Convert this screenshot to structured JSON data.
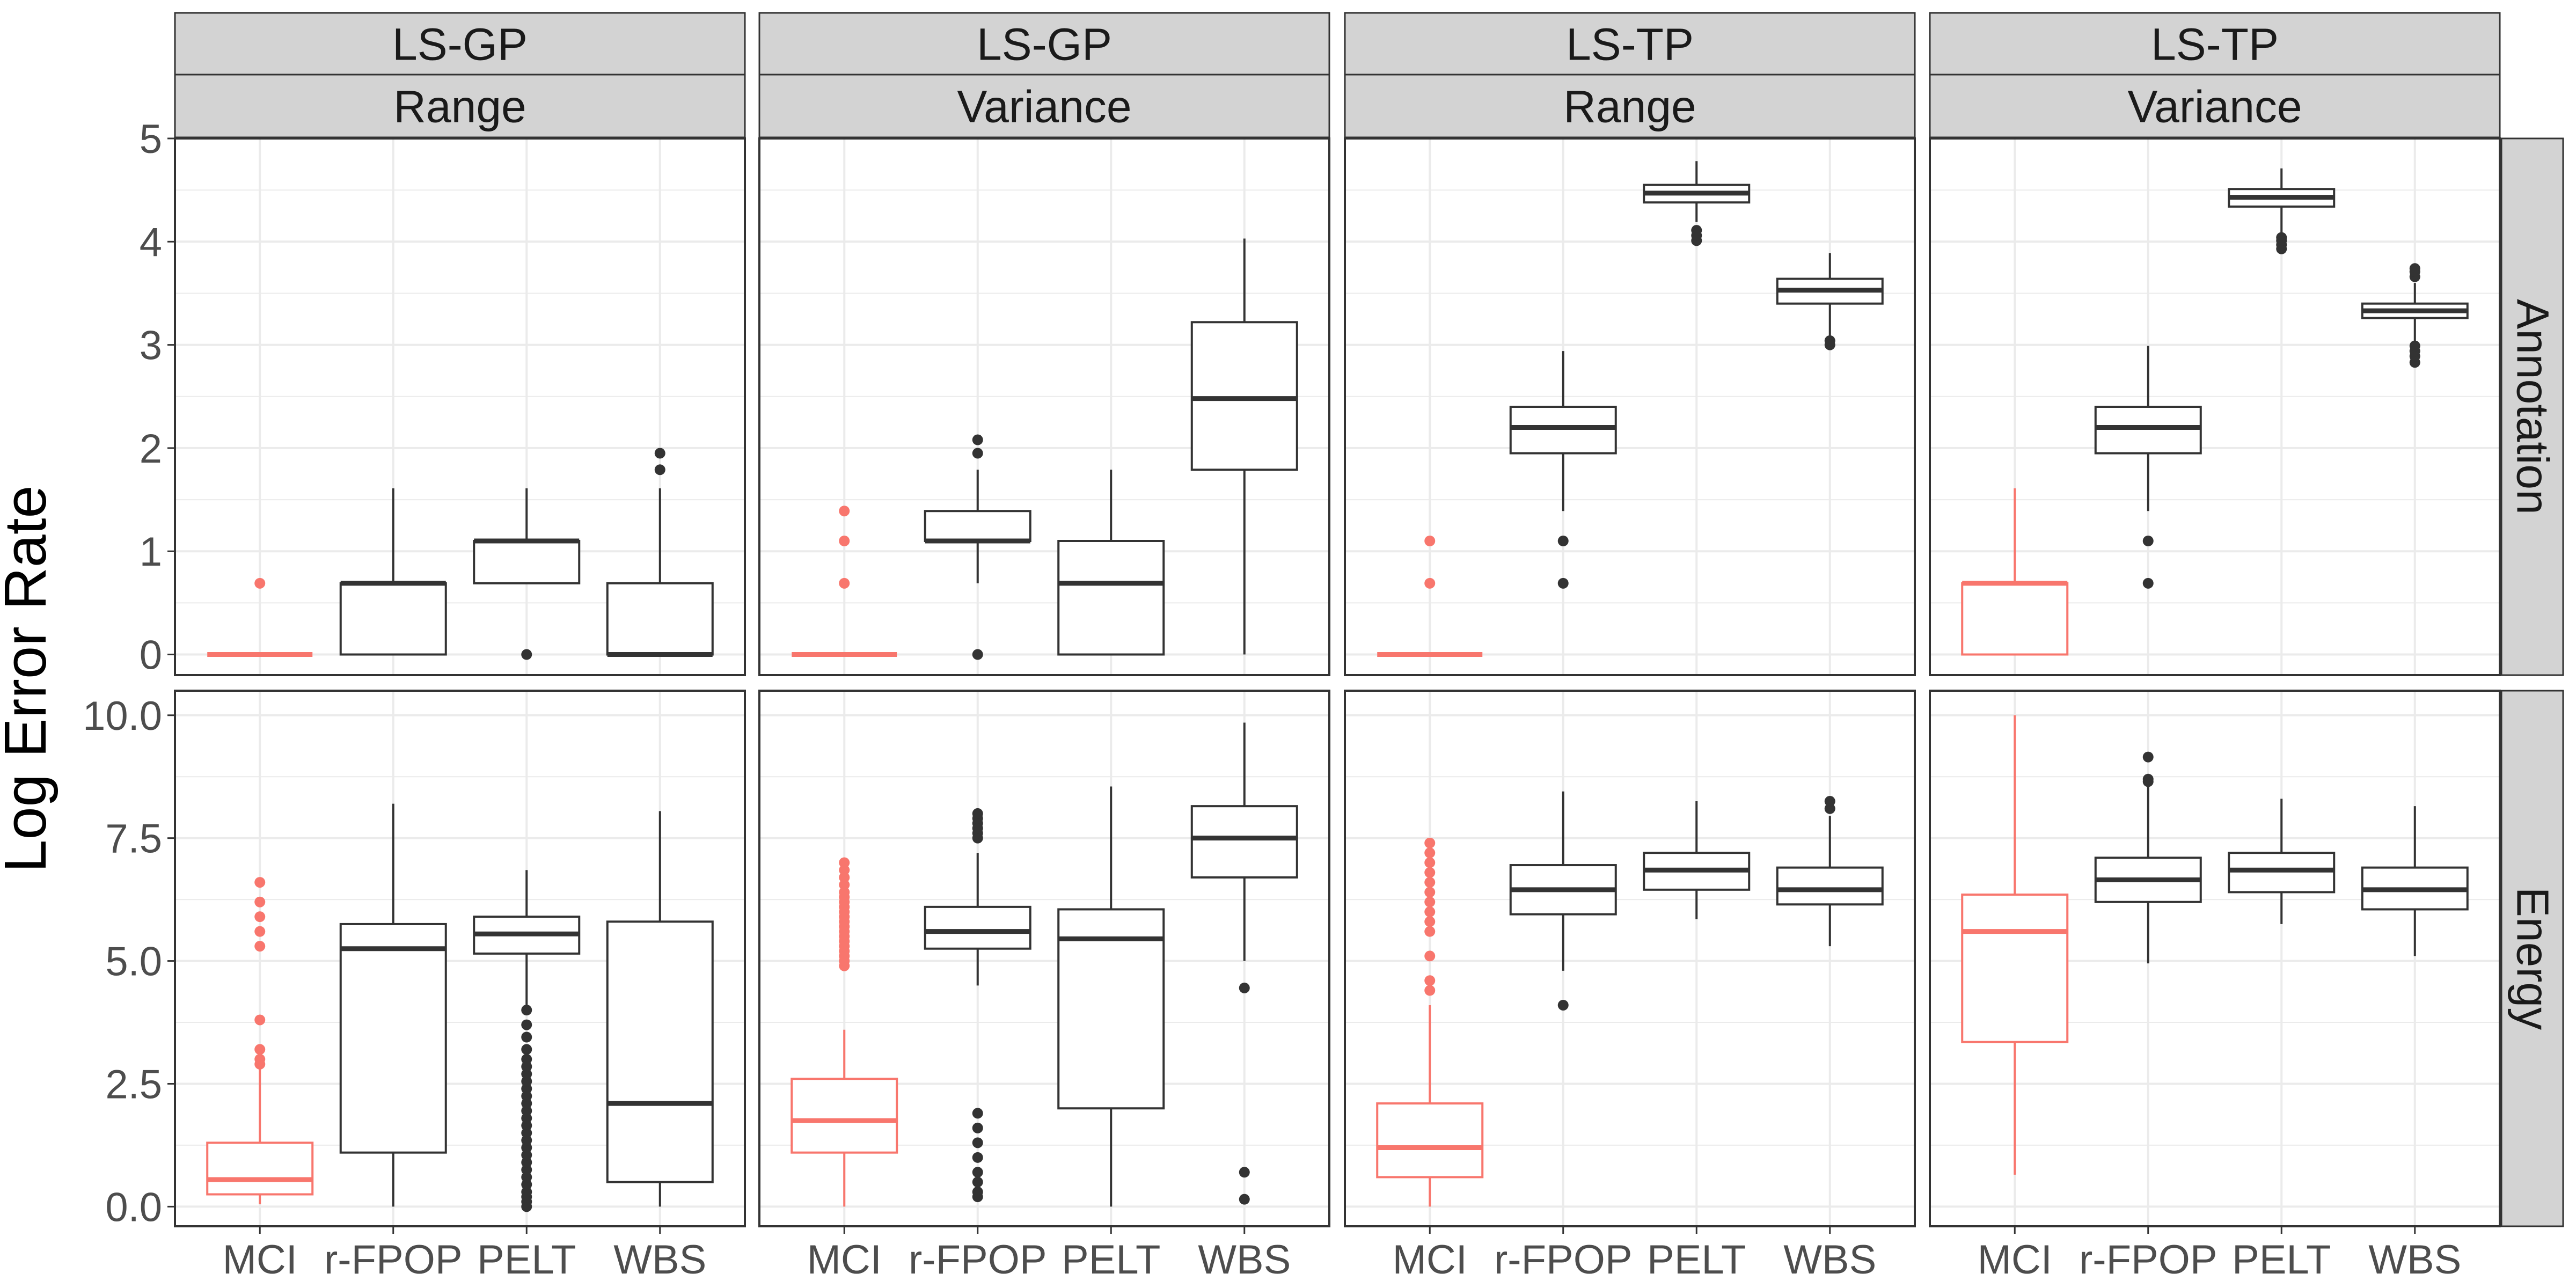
{
  "chart_data": {
    "type": "box",
    "ylabel": "Log Error Rate",
    "categories": [
      "MCI",
      "r-FPOP",
      "PELT",
      "WBS"
    ],
    "highlight_category": "MCI",
    "colors": {
      "highlight": "#F8766D",
      "default": "#333333",
      "strip_bg": "#D3D3D3",
      "grid": "#EBEBEB",
      "panel_border": "#333333",
      "axis_text": "#4D4D4D"
    },
    "columns": [
      {
        "method": "LS-GP",
        "measure": "Range"
      },
      {
        "method": "LS-GP",
        "measure": "Variance"
      },
      {
        "method": "LS-TP",
        "measure": "Range"
      },
      {
        "method": "LS-TP",
        "measure": "Variance"
      }
    ],
    "rows": [
      {
        "label": "Annotation",
        "ylim": [
          -0.2,
          5
        ],
        "ticks": [
          0,
          1,
          2,
          3,
          4,
          5
        ],
        "tick_labels": [
          "0",
          "1",
          "2",
          "3",
          "4",
          "5"
        ]
      },
      {
        "label": "Energy",
        "ylim": [
          -0.4,
          10.5
        ],
        "ticks": [
          0,
          2.5,
          5,
          7.5,
          10
        ],
        "tick_labels": [
          "0.0",
          "2.5",
          "5.0",
          "7.5",
          "10.0"
        ]
      }
    ],
    "panels": [
      [
        [
          {
            "min": 0,
            "q1": 0,
            "median": 0,
            "q3": 0,
            "max": 0,
            "outliers": [
              0.69
            ]
          },
          {
            "min": 0,
            "q1": 0,
            "median": 0.69,
            "q3": 0.69,
            "max": 1.61,
            "outliers": []
          },
          {
            "min": 0.69,
            "q1": 0.69,
            "median": 1.1,
            "q3": 1.1,
            "max": 1.61,
            "outliers": [
              0
            ]
          },
          {
            "min": 0,
            "q1": 0,
            "median": 0,
            "q3": 0.69,
            "max": 1.61,
            "outliers": [
              1.79,
              1.95
            ]
          }
        ],
        [
          {
            "min": 0,
            "q1": 0,
            "median": 0,
            "q3": 0,
            "max": 0,
            "outliers": [
              0.69,
              1.1,
              1.39
            ]
          },
          {
            "min": 0.69,
            "q1": 1.1,
            "median": 1.1,
            "q3": 1.39,
            "max": 1.79,
            "outliers": [
              0,
              1.95,
              2.08
            ]
          },
          {
            "min": 0,
            "q1": 0,
            "median": 0.69,
            "q3": 1.1,
            "max": 1.79,
            "outliers": []
          },
          {
            "min": 0,
            "q1": 1.79,
            "median": 2.48,
            "q3": 3.22,
            "max": 4.03,
            "outliers": []
          }
        ],
        [
          {
            "min": 0,
            "q1": 0,
            "median": 0,
            "q3": 0,
            "max": 0,
            "outliers": [
              0.69,
              1.1
            ]
          },
          {
            "min": 1.39,
            "q1": 1.95,
            "median": 2.2,
            "q3": 2.4,
            "max": 2.94,
            "outliers": [
              0.69,
              1.1
            ]
          },
          {
            "min": 4.19,
            "q1": 4.38,
            "median": 4.47,
            "q3": 4.55,
            "max": 4.78,
            "outliers": [
              4.01,
              4.06,
              4.11
            ]
          },
          {
            "min": 3.09,
            "q1": 3.4,
            "median": 3.53,
            "q3": 3.64,
            "max": 3.89,
            "outliers": [
              3.0,
              3.04
            ]
          }
        ],
        [
          {
            "min": 0,
            "q1": 0,
            "median": 0.69,
            "q3": 0.69,
            "max": 1.61,
            "outliers": []
          },
          {
            "min": 1.39,
            "q1": 1.95,
            "median": 2.2,
            "q3": 2.4,
            "max": 2.99,
            "outliers": [
              0.69,
              1.1
            ]
          },
          {
            "min": 4.06,
            "q1": 4.34,
            "median": 4.43,
            "q3": 4.51,
            "max": 4.71,
            "outliers": [
              3.93,
              3.97,
              4.01,
              4.04
            ]
          },
          {
            "min": 3.0,
            "q1": 3.26,
            "median": 3.33,
            "q3": 3.4,
            "max": 3.6,
            "outliers": [
              2.83,
              2.89,
              2.94,
              2.99,
              3.66,
              3.71,
              3.74
            ]
          }
        ]
      ],
      [
        [
          {
            "min": 0.05,
            "q1": 0.25,
            "median": 0.55,
            "q3": 1.3,
            "max": 2.8,
            "outliers": [
              2.9,
              3.0,
              3.2,
              3.8,
              5.3,
              5.6,
              5.9,
              6.2,
              6.6
            ]
          },
          {
            "min": 0,
            "q1": 1.1,
            "median": 5.25,
            "q3": 5.75,
            "max": 8.2,
            "outliers": []
          },
          {
            "min": 4.1,
            "q1": 5.15,
            "median": 5.55,
            "q3": 5.9,
            "max": 6.85,
            "outliers": [
              0,
              0.1,
              0.2,
              0.3,
              0.45,
              0.6,
              0.75,
              0.9,
              1.05,
              1.2,
              1.35,
              1.5,
              1.65,
              1.8,
              1.95,
              2.1,
              2.25,
              2.4,
              2.55,
              2.7,
              2.85,
              3.0,
              3.2,
              3.45,
              3.7,
              4.0
            ]
          },
          {
            "min": 0,
            "q1": 0.5,
            "median": 2.1,
            "q3": 5.8,
            "max": 8.05,
            "outliers": []
          }
        ],
        [
          {
            "min": 0,
            "q1": 1.1,
            "median": 1.75,
            "q3": 2.6,
            "max": 3.6,
            "outliers": [
              4.9,
              5.0,
              5.1,
              5.2,
              5.3,
              5.4,
              5.5,
              5.6,
              5.7,
              5.8,
              5.9,
              6.0,
              6.1,
              6.2,
              6.3,
              6.4,
              6.55,
              6.7,
              6.85,
              7.0
            ]
          },
          {
            "min": 4.5,
            "q1": 5.25,
            "median": 5.6,
            "q3": 6.1,
            "max": 7.2,
            "outliers": [
              0.2,
              0.3,
              0.5,
              0.7,
              1.0,
              1.3,
              1.6,
              1.9,
              7.5,
              7.6,
              7.7,
              7.8,
              7.9,
              8.0
            ]
          },
          {
            "min": 0,
            "q1": 2.0,
            "median": 5.45,
            "q3": 6.05,
            "max": 8.55,
            "outliers": []
          },
          {
            "min": 5.0,
            "q1": 6.7,
            "median": 7.5,
            "q3": 8.15,
            "max": 9.85,
            "outliers": [
              0.15,
              0.7,
              4.45
            ]
          }
        ],
        [
          {
            "min": 0,
            "q1": 0.6,
            "median": 1.2,
            "q3": 2.1,
            "max": 4.1,
            "outliers": [
              4.4,
              4.6,
              5.1,
              5.6,
              5.8,
              6.0,
              6.2,
              6.4,
              6.6,
              6.8,
              7.0,
              7.2,
              7.4
            ]
          },
          {
            "min": 4.8,
            "q1": 5.95,
            "median": 6.45,
            "q3": 6.95,
            "max": 8.45,
            "outliers": [
              4.1
            ]
          },
          {
            "min": 5.85,
            "q1": 6.45,
            "median": 6.85,
            "q3": 7.2,
            "max": 8.25,
            "outliers": []
          },
          {
            "min": 5.3,
            "q1": 6.15,
            "median": 6.45,
            "q3": 6.9,
            "max": 7.95,
            "outliers": [
              8.1,
              8.25
            ]
          }
        ],
        [
          {
            "min": 0.65,
            "q1": 3.35,
            "median": 5.6,
            "q3": 6.35,
            "max": 10.0,
            "outliers": []
          },
          {
            "min": 4.95,
            "q1": 6.2,
            "median": 6.65,
            "q3": 7.1,
            "max": 8.55,
            "outliers": [
              8.65,
              8.7,
              9.15
            ]
          },
          {
            "min": 5.75,
            "q1": 6.4,
            "median": 6.85,
            "q3": 7.2,
            "max": 8.3,
            "outliers": []
          },
          {
            "min": 5.1,
            "q1": 6.05,
            "median": 6.45,
            "q3": 6.9,
            "max": 8.15,
            "outliers": []
          }
        ]
      ]
    ]
  }
}
